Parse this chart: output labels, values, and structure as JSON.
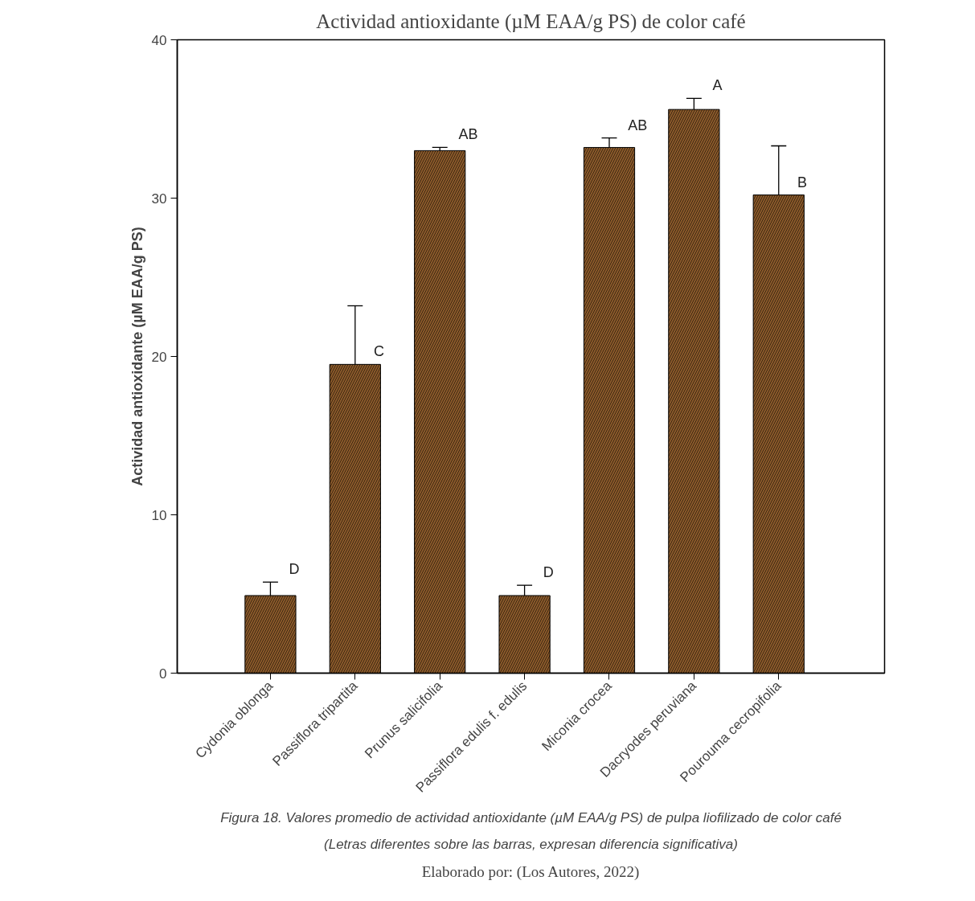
{
  "chart_data": {
    "type": "bar",
    "title": "Actividad antioxidante (µM EAA/g PS) de color café",
    "ylabel": "Actividad antioxidante (µM EAA/g PS)",
    "categories": [
      "Cydonia oblonga",
      "Passiflora tripartita",
      "Prunus salicifolia",
      "Passiflora edulis f. edulis",
      "Miconia crocea",
      "Dacryodes peruviana",
      "Pourouma cecropifolia"
    ],
    "values": [
      4.9,
      19.5,
      33.0,
      4.9,
      33.2,
      35.6,
      30.2
    ],
    "errors": [
      [
        4.9,
        5.75
      ],
      [
        19.5,
        23.2
      ],
      [
        33.0,
        33.2
      ],
      [
        4.9,
        5.55
      ],
      [
        33.2,
        33.8
      ],
      [
        35.6,
        36.3
      ],
      [
        30.2,
        33.3
      ]
    ],
    "color": "#8b5a2b",
    "ylim": [
      0,
      40
    ],
    "yticks": [
      0,
      10,
      20,
      30,
      40
    ],
    "grid": false,
    "annotations": [
      {
        "text": "D",
        "x": "Cydonia oblonga",
        "y": 5.75
      },
      {
        "text": "C",
        "x": "Passiflora tripartita",
        "y": 19.5
      },
      {
        "text": "AB",
        "x": "Prunus salicifolia",
        "y": 33.2
      },
      {
        "text": "D",
        "x": "Passiflora edulis f. edulis",
        "y": 5.55
      },
      {
        "text": "AB",
        "x": "Miconia crocea",
        "y": 33.8
      },
      {
        "text": "A",
        "x": "Dacryodes peruviana",
        "y": 36.3
      },
      {
        "text": "B",
        "x": "Pourouma cecropifolia",
        "y": 30.2
      },
      "Figura 18. Valores promedio de actividad antioxidante (µM EAA/g PS) de pulpa liofilizado de color café",
      "(Letras diferentes sobre las barras, expresan diferencia significativa)",
      "Elaborado por: (Los Autores, 2022)"
    ]
  }
}
